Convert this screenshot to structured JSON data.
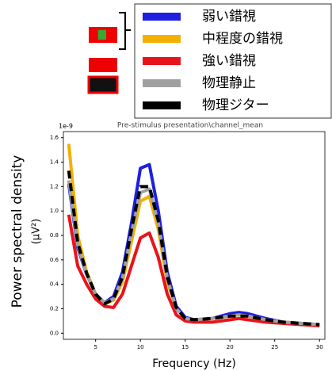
{
  "chart_data": {
    "type": "line",
    "title": "Pre-stimulus presentation\\channel_mean",
    "offset_label": "1e-9",
    "y_label": "Power spectral density",
    "y_unit": "(μV²)",
    "x_label": "Frequency (Hz)",
    "x": [
      2,
      3,
      4,
      5,
      6,
      7,
      8,
      9,
      10,
      11,
      12,
      13,
      14,
      15,
      16,
      18,
      20,
      21,
      22,
      24,
      26,
      28,
      30
    ],
    "series": [
      {
        "name": "弱い錯視",
        "color": "#1f1fe0",
        "dashed": false,
        "values": [
          1.22,
          0.7,
          0.48,
          0.32,
          0.25,
          0.3,
          0.5,
          0.9,
          1.35,
          1.38,
          1.0,
          0.5,
          0.22,
          0.13,
          0.11,
          0.12,
          0.16,
          0.17,
          0.16,
          0.12,
          0.09,
          0.08,
          0.07
        ]
      },
      {
        "name": "中程度の錯視",
        "color": "#f4b000",
        "dashed": false,
        "values": [
          1.55,
          0.8,
          0.5,
          0.32,
          0.24,
          0.27,
          0.42,
          0.75,
          1.08,
          1.12,
          0.85,
          0.42,
          0.2,
          0.12,
          0.11,
          0.12,
          0.14,
          0.15,
          0.14,
          0.11,
          0.09,
          0.08,
          0.07
        ]
      },
      {
        "name": "強い錯視",
        "color": "#e8141b",
        "dashed": false,
        "values": [
          0.97,
          0.55,
          0.4,
          0.28,
          0.22,
          0.21,
          0.32,
          0.55,
          0.78,
          0.82,
          0.62,
          0.32,
          0.15,
          0.1,
          0.09,
          0.09,
          0.11,
          0.12,
          0.11,
          0.09,
          0.08,
          0.07,
          0.06
        ]
      },
      {
        "name": "物理静止",
        "color": "#a0a0a0",
        "dashed": false,
        "values": [
          1.25,
          0.72,
          0.48,
          0.32,
          0.25,
          0.28,
          0.45,
          0.82,
          1.15,
          1.18,
          0.9,
          0.45,
          0.2,
          0.12,
          0.11,
          0.12,
          0.14,
          0.15,
          0.14,
          0.11,
          0.09,
          0.08,
          0.07
        ]
      },
      {
        "name": "物理ジター",
        "color": "#000000",
        "dashed": true,
        "values": [
          1.33,
          0.74,
          0.49,
          0.32,
          0.24,
          0.28,
          0.46,
          0.85,
          1.2,
          1.2,
          0.92,
          0.46,
          0.21,
          0.12,
          0.11,
          0.12,
          0.14,
          0.14,
          0.14,
          0.11,
          0.09,
          0.08,
          0.07
        ]
      }
    ],
    "xlim": [
      1.4,
      30.6
    ],
    "ylim": [
      -0.05,
      1.65
    ],
    "xticks": [
      5,
      10,
      15,
      20,
      25,
      30
    ],
    "yticks": [
      {
        "value": 0,
        "label": "0.0"
      },
      0.2,
      0.4,
      0.6,
      0.8,
      {
        "value": 1,
        "label": "1.0"
      },
      1.2,
      1.4,
      1.6
    ],
    "legend": "top-right"
  }
}
